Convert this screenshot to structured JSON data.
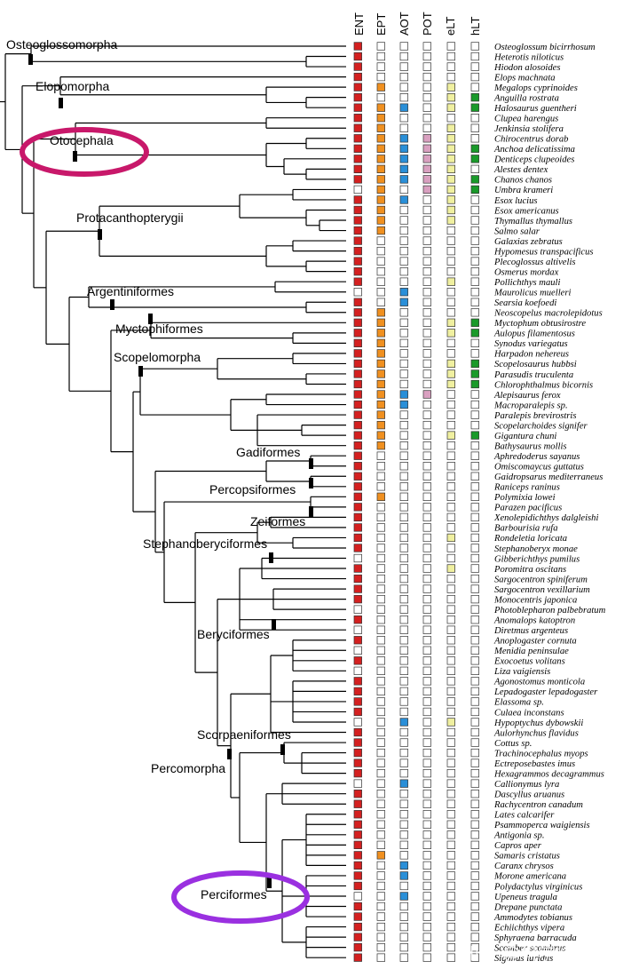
{
  "columns": [
    "ENT",
    "EPT",
    "AOT",
    "POT",
    "eLT",
    "hLT"
  ],
  "colors": {
    "red": "#d42020",
    "orange": "#f09020",
    "blue": "#2a8fd8",
    "pink": "#d9a0c0",
    "yellow": "#f0f0a0",
    "green": "#1a9a2a",
    "empty": "#ffffff",
    "otocephala_ellipse": "#c8186a",
    "perciformes_ellipse": "#9a30e0"
  },
  "clades": [
    "Osteoglossomorpha",
    "Elopomorpha",
    "Otocephala",
    "Protacanthopterygii",
    "Argentiniformes",
    "Myctophiformes",
    "Scopelomorpha",
    "Gadiformes",
    "Percopsiformes",
    "Zeiformes",
    "Stephanoberyciformes",
    "Beryciformes",
    "Scorpaeniformes",
    "Percomorpha",
    "Perciformes"
  ],
  "watermark": "知乎 @科学烂笔头",
  "species": [
    {
      "name": "Osteoglossum bicirrhosum",
      "c": "R00000"
    },
    {
      "name": "Heterotis niloticus",
      "c": "R00000"
    },
    {
      "name": "Hiodon alosoides",
      "c": "R00000"
    },
    {
      "name": "Elops machnata",
      "c": "R00000"
    },
    {
      "name": "Megalops cyprinoides",
      "c": "RO00Y0"
    },
    {
      "name": "Anguilla rostrata",
      "c": "R000YG"
    },
    {
      "name": "Halosaurus guentheri",
      "c": "ROB0YG"
    },
    {
      "name": "Clupea harengus",
      "c": "RO0000"
    },
    {
      "name": "Jenkinsia stolifera",
      "c": "RO00Y0"
    },
    {
      "name": "Chirocentrus dorab",
      "c": "ROBPY0"
    },
    {
      "name": "Anchoa delicatissima",
      "c": "ROBPYG"
    },
    {
      "name": "Denticeps clupeoides",
      "c": "ROBPYG"
    },
    {
      "name": "Alestes dentex",
      "c": "ROBPY0"
    },
    {
      "name": "Chanos chanos",
      "c": "ROBPYG"
    },
    {
      "name": "Umbra krameri",
      "c": "0O0PYG"
    },
    {
      "name": "Esox lucius",
      "c": "ROB0Y0"
    },
    {
      "name": "Esox americanus",
      "c": "RO00Y0"
    },
    {
      "name": "Thymallus thymallus",
      "c": "RO00Y0"
    },
    {
      "name": "Salmo salar",
      "c": "RO0000"
    },
    {
      "name": "Galaxias zebratus",
      "c": "R00000"
    },
    {
      "name": "Hypomesus transpacificus",
      "c": "R00000"
    },
    {
      "name": "Plecoglossus altivelis",
      "c": "R00000"
    },
    {
      "name": "Osmerus mordax",
      "c": "R00000"
    },
    {
      "name": "Pollichthys mauli",
      "c": "R000Y0"
    },
    {
      "name": "Maurolicus muelleri",
      "c": "00B000"
    },
    {
      "name": "Searsia koefoedi",
      "c": "R0B000"
    },
    {
      "name": "Neoscopelus macrolepidotus",
      "c": "RO0000"
    },
    {
      "name": "Myctophum obtusirostre",
      "c": "RO00YG"
    },
    {
      "name": "Aulopus filamentosus",
      "c": "RO00YG"
    },
    {
      "name": "Synodus variegatus",
      "c": "RO0000"
    },
    {
      "name": "Harpadon nehereus",
      "c": "RO0000"
    },
    {
      "name": "Scopelosaurus hubbsi",
      "c": "RO00YG"
    },
    {
      "name": "Parasudis truculenta",
      "c": "RO00YG"
    },
    {
      "name": "Chlorophthalmus bicornis",
      "c": "RO00YG"
    },
    {
      "name": "Alepisaurus ferox",
      "c": "ROBP00"
    },
    {
      "name": "Macroparalepis sp.",
      "c": "ROB000"
    },
    {
      "name": "Paralepis brevirostris",
      "c": "RO0000"
    },
    {
      "name": "Scopelarchoides signifer",
      "c": "RO0000"
    },
    {
      "name": "Gigantura chuni",
      "c": "RO00YG"
    },
    {
      "name": "Bathysaurus mollis",
      "c": "RO0000"
    },
    {
      "name": "Aphredoderus sayanus",
      "c": "R00000"
    },
    {
      "name": "Omiscomaycus guttatus",
      "c": "R00000"
    },
    {
      "name": "Gaidropsarus mediterraneus",
      "c": "R00000"
    },
    {
      "name": "Raniceps raninus",
      "c": "R00000"
    },
    {
      "name": "Polymixia lowei",
      "c": "RO0000"
    },
    {
      "name": "Parazen pacificus",
      "c": "R00000"
    },
    {
      "name": "Xenolepidichthys dalgleishi",
      "c": "R00000"
    },
    {
      "name": "Barbourisia rufa",
      "c": "R00000"
    },
    {
      "name": "Rondeletia loricata",
      "c": "R000Y0"
    },
    {
      "name": "Stephanoberyx monae",
      "c": "R00000"
    },
    {
      "name": "Gibberichthys pumilus",
      "c": "000000"
    },
    {
      "name": "Poromitra oscitans",
      "c": "R000Y0"
    },
    {
      "name": "Sargocentron spiniferum",
      "c": "R00000"
    },
    {
      "name": "Sargocentron vexillarium",
      "c": "R00000"
    },
    {
      "name": "Monocentris japonica",
      "c": "R00000"
    },
    {
      "name": "Photoblepharon palbebratum",
      "c": "000000"
    },
    {
      "name": "Anomalops katoptron",
      "c": "R00000"
    },
    {
      "name": "Diretmus argenteus",
      "c": "000000"
    },
    {
      "name": "Anoplogaster cornuta",
      "c": "R00000"
    },
    {
      "name": "Menidia peninsulae",
      "c": "000000"
    },
    {
      "name": "Exocoetus volitans",
      "c": "R00000"
    },
    {
      "name": "Liza vaigiensis",
      "c": "000000"
    },
    {
      "name": "Agonostomus monticola",
      "c": "R00000"
    },
    {
      "name": "Lepadogaster lepadogaster",
      "c": "R00000"
    },
    {
      "name": "Elassoma sp.",
      "c": "R00000"
    },
    {
      "name": "Culaea inconstans",
      "c": "R00000"
    },
    {
      "name": "Hypoptychus dybowskii",
      "c": "00B0Y0"
    },
    {
      "name": "Aulorhynchus flavidus",
      "c": "R00000"
    },
    {
      "name": "Cottus sp.",
      "c": "R00000"
    },
    {
      "name": "Trachinocephalus myops",
      "c": "R00000"
    },
    {
      "name": "Ectreposebastes imus",
      "c": "R00000"
    },
    {
      "name": "Hexagrammos decagrammus",
      "c": "R00000"
    },
    {
      "name": "Callionymus lyra",
      "c": "00B000"
    },
    {
      "name": "Dascyllus aruanus",
      "c": "R00000"
    },
    {
      "name": "Rachycentron canadum",
      "c": "R00000"
    },
    {
      "name": "Lates calcarifer",
      "c": "R00000"
    },
    {
      "name": "Psammoperca waigiensis",
      "c": "R00000"
    },
    {
      "name": "Antigonia sp.",
      "c": "R00000"
    },
    {
      "name": "Capros aper",
      "c": "R00000"
    },
    {
      "name": "Samaris cristatus",
      "c": "RO0000"
    },
    {
      "name": "Caranx chrysos",
      "c": "R0B000"
    },
    {
      "name": "Morone americana",
      "c": "R0B000"
    },
    {
      "name": "Polydactylus virginicus",
      "c": "R00000"
    },
    {
      "name": "Upeneus tragula",
      "c": "00B000"
    },
    {
      "name": "Drepane punctata",
      "c": "R00000"
    },
    {
      "name": "Ammodytes tobianus",
      "c": "R00000"
    },
    {
      "name": "Echiichthys vipera",
      "c": "R00000"
    },
    {
      "name": "Sphyraena barracuda",
      "c": "R00000"
    },
    {
      "name": "Scomber scombrus",
      "c": "R00000"
    },
    {
      "name": "Siganus luridus",
      "c": "R00000"
    }
  ]
}
